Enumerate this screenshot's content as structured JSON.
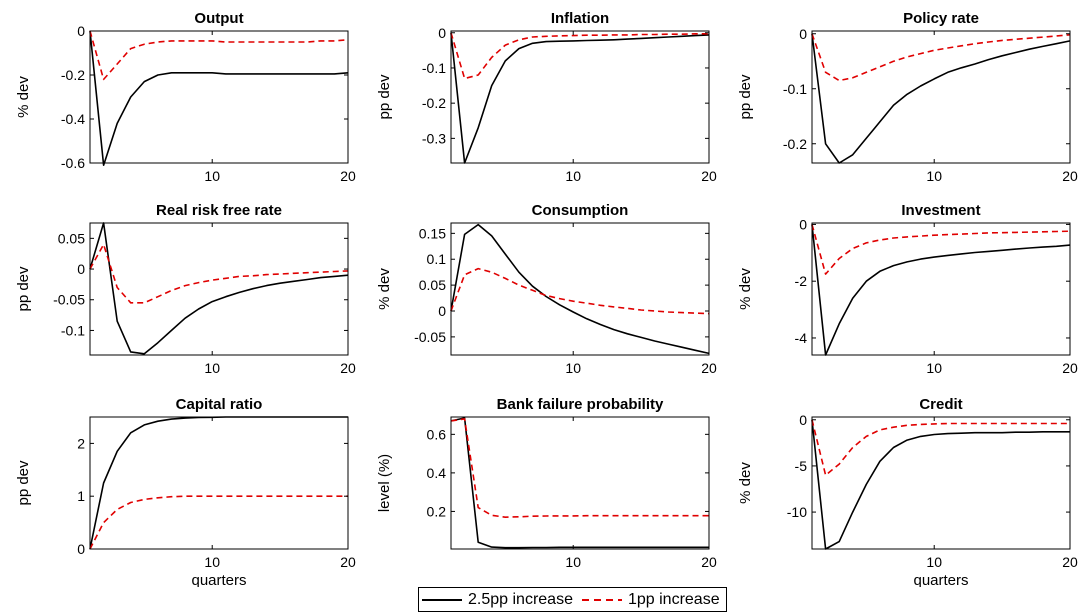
{
  "colors": {
    "series1": "#000000",
    "series2": "#e00000"
  },
  "legend": {
    "series1_label": "2.5pp increase",
    "series2_label": "1pp increase"
  },
  "chart_data": [
    {
      "type": "line",
      "title": "Output",
      "ylabel": "% dev",
      "xlabel": "",
      "xlim": [
        1,
        20
      ],
      "ylim": [
        -0.6,
        0
      ],
      "xticks": [
        10,
        20
      ],
      "yticks": [
        -0.6,
        -0.4,
        -0.2,
        0
      ],
      "ytick_labels": [
        "-0.6",
        "-0.4",
        "-0.2",
        "0"
      ],
      "x": [
        1,
        2,
        3,
        4,
        5,
        6,
        7,
        8,
        9,
        10,
        11,
        12,
        13,
        14,
        15,
        16,
        17,
        18,
        19,
        20
      ],
      "series": [
        {
          "name": "2.5pp increase",
          "values": [
            0,
            -0.61,
            -0.42,
            -0.3,
            -0.23,
            -0.2,
            -0.19,
            -0.19,
            -0.19,
            -0.19,
            -0.195,
            -0.195,
            -0.195,
            -0.195,
            -0.195,
            -0.195,
            -0.195,
            -0.195,
            -0.195,
            -0.19
          ]
        },
        {
          "name": "1pp increase",
          "values": [
            0,
            -0.22,
            -0.15,
            -0.08,
            -0.06,
            -0.05,
            -0.045,
            -0.045,
            -0.045,
            -0.045,
            -0.05,
            -0.05,
            -0.05,
            -0.05,
            -0.05,
            -0.05,
            -0.05,
            -0.045,
            -0.045,
            -0.04
          ]
        }
      ]
    },
    {
      "type": "line",
      "title": "Inflation",
      "ylabel": "pp dev",
      "xlabel": "",
      "xlim": [
        1,
        20
      ],
      "ylim": [
        -0.37,
        0.005
      ],
      "xticks": [
        10,
        20
      ],
      "yticks": [
        -0.3,
        -0.2,
        -0.1,
        0
      ],
      "ytick_labels": [
        "-0.3",
        "-0.2",
        "-0.1",
        "0"
      ],
      "x": [
        1,
        2,
        3,
        4,
        5,
        6,
        7,
        8,
        9,
        10,
        11,
        12,
        13,
        14,
        15,
        16,
        17,
        18,
        19,
        20
      ],
      "series": [
        {
          "name": "2.5pp increase",
          "values": [
            0,
            -0.37,
            -0.27,
            -0.15,
            -0.08,
            -0.045,
            -0.03,
            -0.025,
            -0.024,
            -0.023,
            -0.022,
            -0.021,
            -0.02,
            -0.018,
            -0.016,
            -0.014,
            -0.012,
            -0.01,
            -0.008,
            -0.006
          ]
        },
        {
          "name": "1pp increase",
          "values": [
            0,
            -0.13,
            -0.12,
            -0.07,
            -0.035,
            -0.02,
            -0.012,
            -0.01,
            -0.009,
            -0.008,
            -0.007,
            -0.007,
            -0.006,
            -0.006,
            -0.005,
            -0.005,
            -0.004,
            -0.004,
            -0.003,
            -0.003
          ]
        }
      ]
    },
    {
      "type": "line",
      "title": "Policy rate",
      "ylabel": "pp dev",
      "xlabel": "",
      "xlim": [
        1,
        20
      ],
      "ylim": [
        -0.235,
        0.005
      ],
      "xticks": [
        10,
        20
      ],
      "yticks": [
        -0.2,
        -0.1,
        0
      ],
      "ytick_labels": [
        "-0.2",
        "-0.1",
        "0"
      ],
      "x": [
        1,
        2,
        3,
        4,
        5,
        6,
        7,
        8,
        9,
        10,
        11,
        12,
        13,
        14,
        15,
        16,
        17,
        18,
        19,
        20
      ],
      "series": [
        {
          "name": "2.5pp increase",
          "values": [
            0,
            -0.2,
            -0.235,
            -0.22,
            -0.19,
            -0.16,
            -0.13,
            -0.11,
            -0.095,
            -0.082,
            -0.07,
            -0.062,
            -0.055,
            -0.047,
            -0.04,
            -0.034,
            -0.028,
            -0.023,
            -0.018,
            -0.013
          ]
        },
        {
          "name": "1pp increase",
          "values": [
            0,
            -0.07,
            -0.085,
            -0.08,
            -0.07,
            -0.06,
            -0.05,
            -0.042,
            -0.036,
            -0.03,
            -0.026,
            -0.022,
            -0.018,
            -0.015,
            -0.012,
            -0.01,
            -0.008,
            -0.006,
            -0.004,
            -0.002
          ]
        }
      ]
    },
    {
      "type": "line",
      "title": "Real risk free rate",
      "ylabel": "pp dev",
      "xlabel": "",
      "xlim": [
        1,
        20
      ],
      "ylim": [
        -0.14,
        0.075
      ],
      "xticks": [
        10,
        20
      ],
      "yticks": [
        -0.1,
        -0.05,
        0,
        0.05
      ],
      "ytick_labels": [
        "-0.1",
        "-0.05",
        "0",
        "0.05"
      ],
      "x": [
        1,
        2,
        3,
        4,
        5,
        6,
        7,
        8,
        9,
        10,
        11,
        12,
        13,
        14,
        15,
        16,
        17,
        18,
        19,
        20
      ],
      "series": [
        {
          "name": "2.5pp increase",
          "values": [
            0,
            0.075,
            -0.085,
            -0.135,
            -0.138,
            -0.12,
            -0.1,
            -0.08,
            -0.065,
            -0.053,
            -0.045,
            -0.038,
            -0.032,
            -0.027,
            -0.023,
            -0.02,
            -0.017,
            -0.014,
            -0.012,
            -0.01
          ]
        },
        {
          "name": "1pp increase",
          "values": [
            0,
            0.04,
            -0.03,
            -0.055,
            -0.055,
            -0.045,
            -0.035,
            -0.027,
            -0.022,
            -0.018,
            -0.015,
            -0.012,
            -0.011,
            -0.009,
            -0.008,
            -0.007,
            -0.006,
            -0.005,
            -0.004,
            -0.003
          ]
        }
      ]
    },
    {
      "type": "line",
      "title": "Consumption",
      "ylabel": "% dev",
      "xlabel": "",
      "xlim": [
        1,
        20
      ],
      "ylim": [
        -0.085,
        0.17
      ],
      "xticks": [
        10,
        20
      ],
      "yticks": [
        -0.05,
        0,
        0.05,
        0.1,
        0.15
      ],
      "ytick_labels": [
        "-0.05",
        "0",
        "0.05",
        "0.1",
        "0.15"
      ],
      "x": [
        1,
        2,
        3,
        4,
        5,
        6,
        7,
        8,
        9,
        10,
        11,
        12,
        13,
        14,
        15,
        16,
        17,
        18,
        19,
        20
      ],
      "series": [
        {
          "name": "2.5pp increase",
          "values": [
            0,
            0.148,
            0.167,
            0.145,
            0.11,
            0.075,
            0.048,
            0.028,
            0.012,
            -0.002,
            -0.015,
            -0.026,
            -0.036,
            -0.044,
            -0.051,
            -0.058,
            -0.064,
            -0.07,
            -0.076,
            -0.082
          ]
        },
        {
          "name": "1pp increase",
          "values": [
            0,
            0.07,
            0.082,
            0.075,
            0.063,
            0.05,
            0.04,
            0.03,
            0.024,
            0.019,
            0.015,
            0.011,
            0.008,
            0.005,
            0.002,
            0,
            -0.002,
            -0.003,
            -0.004,
            -0.005
          ]
        }
      ]
    },
    {
      "type": "line",
      "title": "Investment",
      "ylabel": "% dev",
      "xlabel": "",
      "xlim": [
        1,
        20
      ],
      "ylim": [
        -4.6,
        0.05
      ],
      "xticks": [
        10,
        20
      ],
      "yticks": [
        -4,
        -2,
        0
      ],
      "ytick_labels": [
        "-4",
        "-2",
        "0"
      ],
      "x": [
        1,
        2,
        3,
        4,
        5,
        6,
        7,
        8,
        9,
        10,
        11,
        12,
        13,
        14,
        15,
        16,
        17,
        18,
        19,
        20
      ],
      "series": [
        {
          "name": "2.5pp increase",
          "values": [
            0,
            -4.6,
            -3.5,
            -2.6,
            -2.0,
            -1.65,
            -1.45,
            -1.32,
            -1.22,
            -1.15,
            -1.09,
            -1.04,
            -0.99,
            -0.95,
            -0.91,
            -0.87,
            -0.83,
            -0.8,
            -0.77,
            -0.73
          ]
        },
        {
          "name": "1pp increase",
          "values": [
            0,
            -1.75,
            -1.2,
            -0.85,
            -0.65,
            -0.55,
            -0.48,
            -0.44,
            -0.41,
            -0.38,
            -0.36,
            -0.34,
            -0.32,
            -0.3,
            -0.29,
            -0.28,
            -0.27,
            -0.26,
            -0.25,
            -0.24
          ]
        }
      ]
    },
    {
      "type": "line",
      "title": "Capital ratio",
      "ylabel": "pp dev",
      "xlabel": "quarters",
      "xlim": [
        1,
        20
      ],
      "ylim": [
        0,
        2.5
      ],
      "xticks": [
        10,
        20
      ],
      "yticks": [
        0,
        1,
        2
      ],
      "ytick_labels": [
        "0",
        "1",
        "2"
      ],
      "x": [
        1,
        2,
        3,
        4,
        5,
        6,
        7,
        8,
        9,
        10,
        11,
        12,
        13,
        14,
        15,
        16,
        17,
        18,
        19,
        20
      ],
      "series": [
        {
          "name": "2.5pp increase",
          "values": [
            0,
            1.25,
            1.85,
            2.2,
            2.35,
            2.42,
            2.46,
            2.48,
            2.49,
            2.495,
            2.5,
            2.5,
            2.5,
            2.5,
            2.5,
            2.5,
            2.5,
            2.5,
            2.5,
            2.5
          ]
        },
        {
          "name": "1pp increase",
          "values": [
            0,
            0.5,
            0.75,
            0.88,
            0.94,
            0.97,
            0.99,
            1.0,
            1.0,
            1.0,
            1.0,
            1.0,
            1.0,
            1.0,
            1.0,
            1.0,
            1.0,
            1.0,
            1.0,
            1.0
          ]
        }
      ]
    },
    {
      "type": "line",
      "title": "Bank failure probability",
      "ylabel": "level (%)",
      "xlabel": "",
      "xlim": [
        1,
        20
      ],
      "ylim": [
        0.005,
        0.69
      ],
      "xticks": [
        10,
        20
      ],
      "yticks": [
        0.2,
        0.4,
        0.6
      ],
      "ytick_labels": [
        "0.2",
        "0.4",
        "0.6"
      ],
      "x": [
        1,
        2,
        3,
        4,
        5,
        6,
        7,
        8,
        9,
        10,
        11,
        12,
        13,
        14,
        15,
        16,
        17,
        18,
        19,
        20
      ],
      "series": [
        {
          "name": "2.5pp increase",
          "values": [
            0.67,
            0.685,
            0.04,
            0.015,
            0.012,
            0.012,
            0.013,
            0.013,
            0.014,
            0.014,
            0.014,
            0.014,
            0.014,
            0.014,
            0.014,
            0.014,
            0.014,
            0.014,
            0.014,
            0.014
          ]
        },
        {
          "name": "1pp increase",
          "values": [
            0.67,
            0.68,
            0.22,
            0.18,
            0.17,
            0.172,
            0.175,
            0.176,
            0.177,
            0.177,
            0.178,
            0.178,
            0.178,
            0.178,
            0.178,
            0.178,
            0.178,
            0.178,
            0.178,
            0.178
          ]
        }
      ]
    },
    {
      "type": "line",
      "title": "Credit",
      "ylabel": "% dev",
      "xlabel": "quarters",
      "xlim": [
        1,
        20
      ],
      "ylim": [
        -14,
        0.3
      ],
      "xticks": [
        10,
        20
      ],
      "yticks": [
        -10,
        -5,
        0
      ],
      "ytick_labels": [
        "-10",
        "-5",
        "0"
      ],
      "x": [
        1,
        2,
        3,
        4,
        5,
        6,
        7,
        8,
        9,
        10,
        11,
        12,
        13,
        14,
        15,
        16,
        17,
        18,
        19,
        20
      ],
      "series": [
        {
          "name": "2.5pp increase",
          "values": [
            0,
            -14,
            -13.2,
            -10,
            -7,
            -4.5,
            -3,
            -2.2,
            -1.8,
            -1.6,
            -1.5,
            -1.45,
            -1.4,
            -1.4,
            -1.4,
            -1.35,
            -1.35,
            -1.3,
            -1.3,
            -1.3
          ]
        },
        {
          "name": "1pp increase",
          "values": [
            0,
            -6,
            -4.8,
            -3,
            -1.8,
            -1.1,
            -0.8,
            -0.6,
            -0.5,
            -0.45,
            -0.4,
            -0.4,
            -0.4,
            -0.4,
            -0.4,
            -0.4,
            -0.4,
            -0.4,
            -0.4,
            -0.4
          ]
        }
      ]
    }
  ]
}
